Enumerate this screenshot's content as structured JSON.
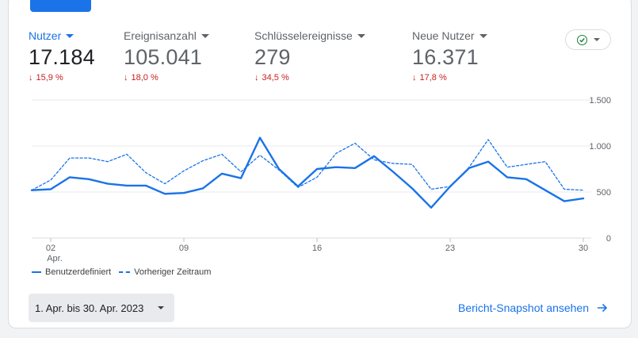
{
  "metrics": [
    {
      "label": "Nutzer",
      "value": "17.184",
      "change": "15,9 %"
    },
    {
      "label": "Ereignisanzahl",
      "value": "105.041",
      "change": "18,0 %"
    },
    {
      "label": "Schlüsselereignisse",
      "value": "279",
      "change": "34,5 %"
    },
    {
      "label": "Neue Nutzer",
      "value": "16.371",
      "change": "17,8 %"
    }
  ],
  "colors": {
    "accent": "#1a73e8",
    "negative": "#c5221f",
    "success": "#188038"
  },
  "chart_data": {
    "type": "line",
    "x": [
      1,
      2,
      3,
      4,
      5,
      6,
      7,
      8,
      9,
      10,
      11,
      12,
      13,
      14,
      15,
      16,
      17,
      18,
      19,
      20,
      21,
      22,
      23,
      24,
      25,
      26,
      27,
      28,
      29,
      30
    ],
    "x_ticks": [
      {
        "day": 2,
        "label": "02",
        "sublabel": "Apr."
      },
      {
        "day": 9,
        "label": "09",
        "sublabel": ""
      },
      {
        "day": 16,
        "label": "16",
        "sublabel": ""
      },
      {
        "day": 23,
        "label": "23",
        "sublabel": ""
      },
      {
        "day": 30,
        "label": "30",
        "sublabel": ""
      }
    ],
    "y_ticks": [
      {
        "value": 0,
        "label": "0"
      },
      {
        "value": 500,
        "label": "500"
      },
      {
        "value": 1000,
        "label": "1.000"
      },
      {
        "value": 1500,
        "label": "1.500"
      }
    ],
    "ylim": [
      0,
      1500
    ],
    "grid": true,
    "legend_position": "bottom-left",
    "series": [
      {
        "name": "Benutzerdefiniert",
        "style": "solid",
        "values": [
          520,
          530,
          660,
          640,
          590,
          570,
          570,
          480,
          490,
          540,
          700,
          650,
          1090,
          750,
          560,
          750,
          770,
          760,
          890,
          720,
          540,
          330,
          560,
          760,
          830,
          660,
          640,
          520,
          400,
          430
        ]
      },
      {
        "name": "Vorheriger Zeitraum",
        "style": "dashed",
        "values": [
          520,
          630,
          870,
          870,
          830,
          910,
          710,
          590,
          730,
          840,
          910,
          720,
          900,
          740,
          550,
          660,
          920,
          1030,
          850,
          810,
          800,
          530,
          560,
          770,
          1070,
          770,
          800,
          830,
          530,
          520
        ]
      }
    ]
  },
  "date_range": {
    "label": "1. Apr. bis 30. Apr. 2023"
  },
  "report_link": {
    "label": "Bericht-Snapshot ansehen"
  }
}
